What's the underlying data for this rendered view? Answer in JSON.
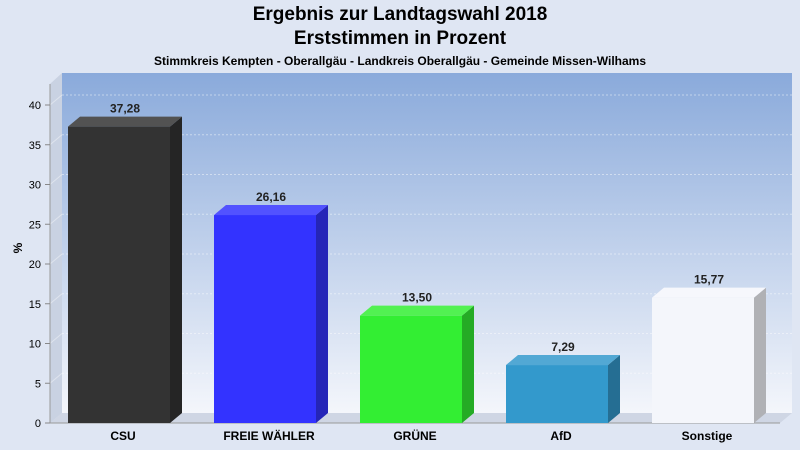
{
  "chart_data": {
    "type": "bar",
    "title": "Ergebnis zur Landtagswahl 2018",
    "subtitle": "Erststimmen in Prozent",
    "subsubtitle": "Stimmkreis Kempten - Oberallgäu - Landkreis Oberallgäu - Gemeinde Missen-Wilhams",
    "xlabel": "",
    "ylabel": "%",
    "ylim": [
      0,
      40
    ],
    "yticks": [
      0,
      5,
      10,
      15,
      20,
      25,
      30,
      35,
      40
    ],
    "grid": true,
    "categories": [
      "CSU",
      "FREIE WÄHLER",
      "GRÜNE",
      "AfD",
      "Sonstige"
    ],
    "values": [
      37.28,
      26.16,
      13.5,
      7.29,
      15.77
    ],
    "value_labels": [
      "37,28",
      "26,16",
      "13,50",
      "7,29",
      "15,77"
    ],
    "colors": [
      "#333333",
      "#3333ff",
      "#33ee33",
      "#3399cc",
      "#f4f6fb"
    ]
  }
}
